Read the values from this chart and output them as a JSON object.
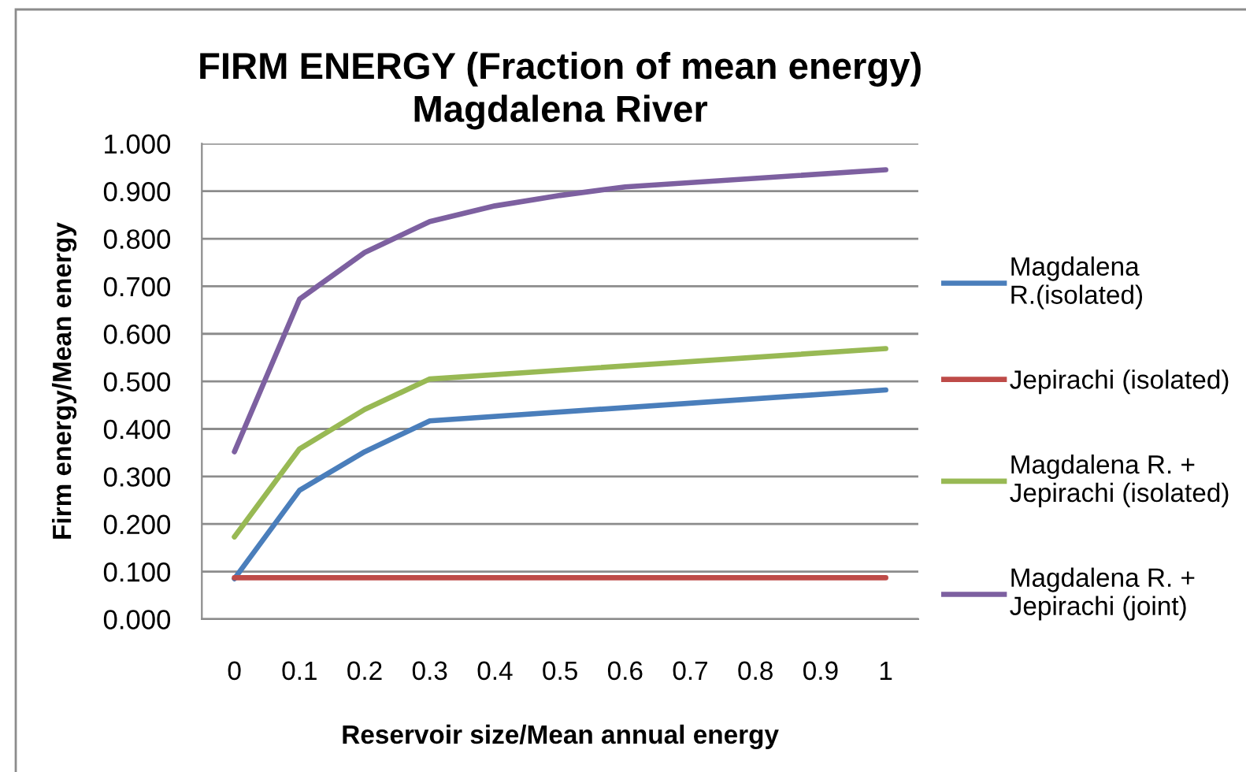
{
  "chart_data": {
    "type": "line",
    "title": "FIRM ENERGY (Fraction of mean energy)\nMagdalena River",
    "xlabel": "Reservoir size/Mean annual energy",
    "ylabel": "Firm energy/Mean energy",
    "xlim": [
      -0.05,
      1.05
    ],
    "xticks": [
      0,
      0.1,
      0.2,
      0.3,
      0.4,
      0.5,
      0.6,
      0.7,
      0.8,
      0.9,
      1
    ],
    "ylim": [
      0,
      1
    ],
    "yticks": [
      {
        "value": 0,
        "label": "0.000"
      },
      {
        "value": 0.1,
        "label": "0.100"
      },
      {
        "value": 0.2,
        "label": "0.200"
      },
      {
        "value": 0.3,
        "label": "0.300"
      },
      {
        "value": 0.4,
        "label": "0.400"
      },
      {
        "value": 0.5,
        "label": "0.500"
      },
      {
        "value": 0.6,
        "label": "0.600"
      },
      {
        "value": 0.7,
        "label": "0.700"
      },
      {
        "value": 0.8,
        "label": "0.800"
      },
      {
        "value": 0.9,
        "label": "0.900"
      },
      {
        "value": 1,
        "label": "1.000"
      }
    ],
    "grid": "y",
    "legend": "right",
    "marker": "none",
    "line_style": "solid",
    "series": [
      {
        "name": "Magdalena\nR.(isolated)",
        "color": "#4a7ebb",
        "x": [
          0,
          0.1,
          0.2,
          0.3,
          1
        ],
        "values": [
          0.085,
          0.271,
          0.352,
          0.417,
          0.482
        ]
      },
      {
        "name": "Jepirachi (isolated)",
        "color": "#be4b48",
        "x": [
          0,
          1
        ],
        "values": [
          0.087,
          0.087
        ]
      },
      {
        "name": "Magdalena R. +\nJepirachi (isolated)",
        "color": "#98b954",
        "x": [
          0,
          0.1,
          0.2,
          0.3,
          1
        ],
        "values": [
          0.173,
          0.358,
          0.441,
          0.505,
          0.569
        ]
      },
      {
        "name": "Magdalena R. +\nJepirachi (joint)",
        "color": "#7d60a0",
        "x": [
          0,
          0.1,
          0.2,
          0.3,
          0.4,
          0.5,
          0.6,
          1
        ],
        "values": [
          0.352,
          0.673,
          0.771,
          0.836,
          0.869,
          0.891,
          0.909,
          0.945
        ]
      }
    ]
  }
}
